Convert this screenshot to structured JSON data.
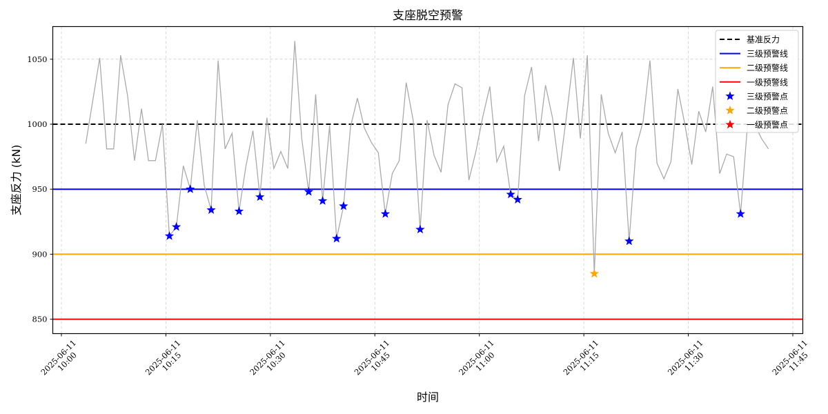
{
  "chart_data": {
    "type": "line",
    "title": "支座脱空预警",
    "xlabel": "时间",
    "ylabel": "支座反力 (kN)",
    "ylim": [
      838,
      1075
    ],
    "xlim_minutes_from_10_00": [
      -1.3,
      106.8
    ],
    "grid": true,
    "legend_position": "upper right",
    "x_tick_labels": [
      {
        "date": "2025-06-11",
        "time": "10:00",
        "minute": 0
      },
      {
        "date": "2025-06-11",
        "time": "10:15",
        "minute": 15
      },
      {
        "date": "2025-06-11",
        "time": "10:30",
        "minute": 30
      },
      {
        "date": "2025-06-11",
        "time": "10:45",
        "minute": 45
      },
      {
        "date": "2025-06-11",
        "time": "11:00",
        "minute": 60
      },
      {
        "date": "2025-06-11",
        "time": "11:15",
        "minute": 75
      },
      {
        "date": "2025-06-11",
        "time": "11:30",
        "minute": 90
      },
      {
        "date": "2025-06-11",
        "time": "11:45",
        "minute": 105
      }
    ],
    "y_ticks": [
      850,
      900,
      950,
      1000,
      1050
    ],
    "reference_lines": [
      {
        "name": "基准反力",
        "value": 1000,
        "color": "#000000",
        "style": "dashed"
      },
      {
        "name": "三级预警线",
        "value": 950,
        "color": "#0000ff",
        "style": "solid"
      },
      {
        "name": "二级预警线",
        "value": 900,
        "color": "#ffa500",
        "style": "solid"
      },
      {
        "name": "一级预警线",
        "value": 850,
        "color": "#ff0000",
        "style": "solid"
      }
    ],
    "series": [
      {
        "name": "支座反力",
        "color": "#aaaaaa",
        "start_minute": 3.5,
        "step_minutes": 1,
        "values": [
          985,
          1018,
          1051,
          981,
          981,
          1053,
          1022,
          972,
          1012,
          972,
          972,
          1000,
          914,
          921,
          968,
          950,
          1003,
          953,
          934,
          1049,
          981,
          993,
          933,
          968,
          995,
          944,
          1005,
          966,
          979,
          966,
          1064,
          989,
          948,
          1023,
          941,
          999,
          912,
          937,
          998,
          1020,
          997,
          986,
          978,
          931,
          962,
          972,
          1032,
          1003,
          919,
          1003,
          976,
          963,
          1015,
          1031,
          1028,
          957,
          979,
          1006,
          1029,
          971,
          983,
          946,
          942,
          1022,
          1044,
          987,
          1030,
          1005,
          964,
          1006,
          1051,
          989,
          1053,
          885,
          1023,
          993,
          978,
          994,
          910,
          982,
          1002,
          1049,
          970,
          958,
          971,
          1027,
          1000,
          969,
          1010,
          994,
          1029,
          962,
          977,
          975,
          931,
          1000,
          1000,
          989,
          981
        ]
      }
    ],
    "warning_points": {
      "level3": {
        "name": "三级预警点",
        "color": "#0000ff",
        "points": [
          {
            "minute": 15.5,
            "value": 914
          },
          {
            "minute": 16.5,
            "value": 921
          },
          {
            "minute": 18.5,
            "value": 950
          },
          {
            "minute": 21.5,
            "value": 934
          },
          {
            "minute": 25.5,
            "value": 933
          },
          {
            "minute": 28.5,
            "value": 944
          },
          {
            "minute": 35.5,
            "value": 948
          },
          {
            "minute": 37.5,
            "value": 941
          },
          {
            "minute": 39.5,
            "value": 912
          },
          {
            "minute": 40.5,
            "value": 937
          },
          {
            "minute": 46.5,
            "value": 931
          },
          {
            "minute": 51.5,
            "value": 919
          },
          {
            "minute": 64.5,
            "value": 946
          },
          {
            "minute": 65.5,
            "value": 942
          },
          {
            "minute": 81.5,
            "value": 910
          },
          {
            "minute": 97.5,
            "value": 931
          }
        ]
      },
      "level2": {
        "name": "二级预警点",
        "color": "#ffa500",
        "points": [
          {
            "minute": 76.5,
            "value": 885
          }
        ]
      },
      "level1": {
        "name": "一级预警点",
        "color": "#ff0000",
        "points": []
      }
    },
    "legend": [
      "基准反力",
      "三级预警线",
      "二级预警线",
      "一级预警线",
      "三级预警点",
      "二级预警点",
      "一级预警点"
    ]
  }
}
